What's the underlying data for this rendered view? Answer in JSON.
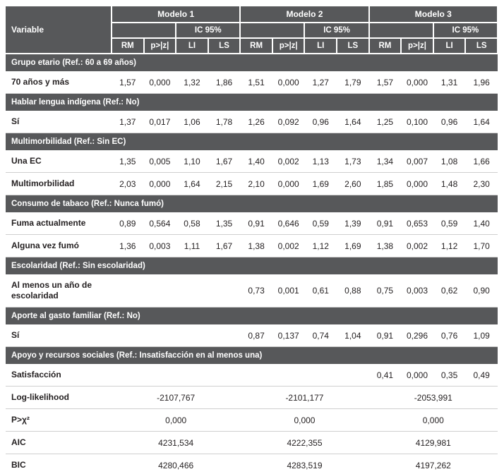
{
  "table": {
    "variable_header": "Variable",
    "models": [
      "Modelo 1",
      "Modelo 2",
      "Modelo 3"
    ],
    "ic_label": "IC 95%",
    "stat_cols": [
      "RM",
      "p>|z|",
      "LI",
      "LS"
    ],
    "sections": [
      {
        "title": "Grupo etario (Ref.: 60 a 69 años)",
        "rows": [
          {
            "label": "70 años y más",
            "m1": [
              "1,57",
              "0,000",
              "1,32",
              "1,86"
            ],
            "m2": [
              "1,51",
              "0,000",
              "1,27",
              "1,79"
            ],
            "m3": [
              "1,57",
              "0,000",
              "1,31",
              "1,96"
            ]
          }
        ]
      },
      {
        "title": "Hablar lengua indígena (Ref.: No)",
        "rows": [
          {
            "label": "Sí",
            "m1": [
              "1,37",
              "0,017",
              "1,06",
              "1,78"
            ],
            "m2": [
              "1,26",
              "0,092",
              "0,96",
              "1,64"
            ],
            "m3": [
              "1,25",
              "0,100",
              "0,96",
              "1,64"
            ]
          }
        ]
      },
      {
        "title": "Multimorbilidad (Ref.: Sin EC)",
        "rows": [
          {
            "label": "Una EC",
            "m1": [
              "1,35",
              "0,005",
              "1,10",
              "1,67"
            ],
            "m2": [
              "1,40",
              "0,002",
              "1,13",
              "1,73"
            ],
            "m3": [
              "1,34",
              "0,007",
              "1,08",
              "1,66"
            ]
          },
          {
            "label": "Multimorbilidad",
            "m1": [
              "2,03",
              "0,000",
              "1,64",
              "2,15"
            ],
            "m2": [
              "2,10",
              "0,000",
              "1,69",
              "2,60"
            ],
            "m3": [
              "1,85",
              "0,000",
              "1,48",
              "2,30"
            ]
          }
        ]
      },
      {
        "title": "Consumo de tabaco (Ref.: Nunca fumó)",
        "rows": [
          {
            "label": "Fuma actualmente",
            "m1": [
              "0,89",
              "0,564",
              "0,58",
              "1,35"
            ],
            "m2": [
              "0,91",
              "0,646",
              "0,59",
              "1,39"
            ],
            "m3": [
              "0,91",
              "0,653",
              "0,59",
              "1,40"
            ]
          },
          {
            "label": "Alguna vez fumó",
            "m1": [
              "1,36",
              "0,003",
              "1,11",
              "1,67"
            ],
            "m2": [
              "1,38",
              "0,002",
              "1,12",
              "1,69"
            ],
            "m3": [
              "1,38",
              "0,002",
              "1,12",
              "1,70"
            ]
          }
        ]
      },
      {
        "title": "Escolaridad (Ref.: Sin escolaridad)",
        "rows": [
          {
            "label": "Al menos un año de escolaridad",
            "m1": [
              "",
              "",
              "",
              ""
            ],
            "m2": [
              "0,73",
              "0,001",
              "0,61",
              "0,88"
            ],
            "m3": [
              "0,75",
              "0,003",
              "0,62",
              "0,90"
            ]
          }
        ]
      },
      {
        "title": "Aporte al gasto familiar (Ref.: No)",
        "rows": [
          {
            "label": "Sí",
            "m1": [
              "",
              "",
              "",
              ""
            ],
            "m2": [
              "0,87",
              "0,137",
              "0,74",
              "1,04"
            ],
            "m3": [
              "0,91",
              "0,296",
              "0,76",
              "1,09"
            ]
          }
        ]
      },
      {
        "title": "Apoyo y recursos sociales (Ref.: Insatisfacción en al menos una)",
        "rows": [
          {
            "label": "Satisfacción",
            "m1": [
              "",
              "",
              "",
              ""
            ],
            "m2": [
              "",
              "",
              "",
              ""
            ],
            "m3": [
              "0,41",
              "0,000",
              "0,35",
              "0,49"
            ]
          }
        ]
      }
    ],
    "footer_rows": [
      {
        "label": "Log-likelihood",
        "values": [
          "-2107,767",
          "-2101,177",
          "-2053,991"
        ]
      },
      {
        "label": "P>χ²",
        "values": [
          "0,000",
          "0,000",
          "0,000"
        ]
      },
      {
        "label": "AIC",
        "values": [
          "4231,534",
          "4222,355",
          "4129,981"
        ]
      },
      {
        "label": "BIC",
        "values": [
          "4280,466",
          "4283,519",
          "4197,262"
        ]
      }
    ]
  }
}
